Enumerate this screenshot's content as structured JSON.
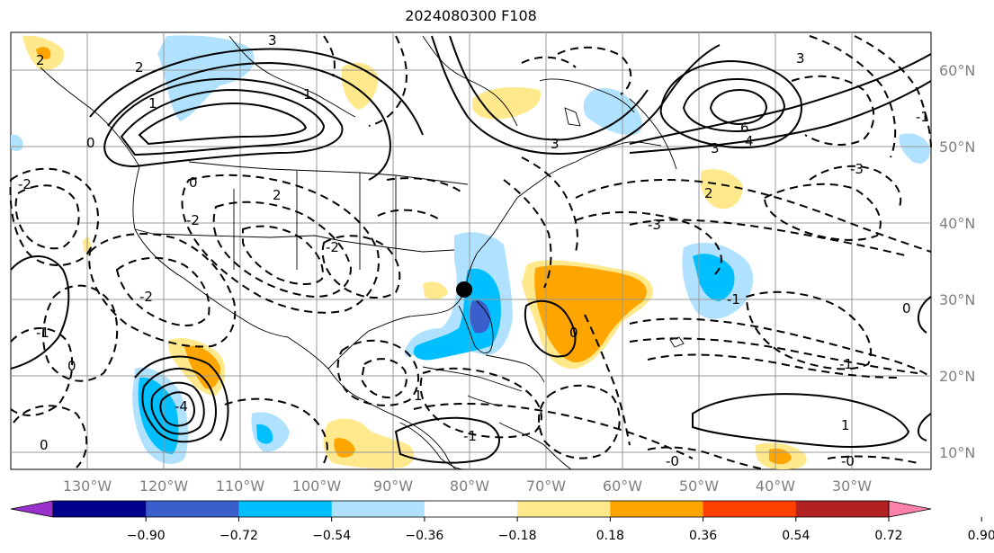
{
  "title": "2024080300 F108",
  "lon_labels": [
    "130°W",
    "120°W",
    "110°W",
    "100°W",
    "90°W",
    "80°W",
    "70°W",
    "60°W",
    "50°W",
    "40°W",
    "30°W"
  ],
  "lat_labels": [
    "60°N",
    "50°N",
    "40°N",
    "30°N",
    "20°N",
    "10°N"
  ],
  "colorbar": {
    "tick_labels": [
      "−0.90",
      "−0.72",
      "−0.54",
      "−0.36",
      "−0.18",
      "0.18",
      "0.36",
      "0.54",
      "0.72",
      "0.90"
    ],
    "colors": [
      "#9932cc",
      "#00008b",
      "#3a5fcd",
      "#00bfff",
      "#b0e2ff",
      "#ffffff",
      "#ffe98c",
      "#ffa500",
      "#ff3f00",
      "#b22222",
      "#ff82ab"
    ]
  },
  "contour_labels": [
    "6",
    "4",
    "3",
    "3",
    "3",
    "2",
    "2",
    "1",
    "1",
    "0",
    "0",
    "0",
    "-1",
    "-1",
    "-1",
    "-2",
    "-2",
    "-2",
    "-3",
    "-3",
    "-4",
    "0",
    "1",
    "2",
    "3",
    "-1",
    "0",
    "1",
    "-0",
    "-0",
    "-2",
    "-1",
    "0",
    "2"
  ],
  "marker": {
    "label": "black dot",
    "color": "#000000"
  }
}
